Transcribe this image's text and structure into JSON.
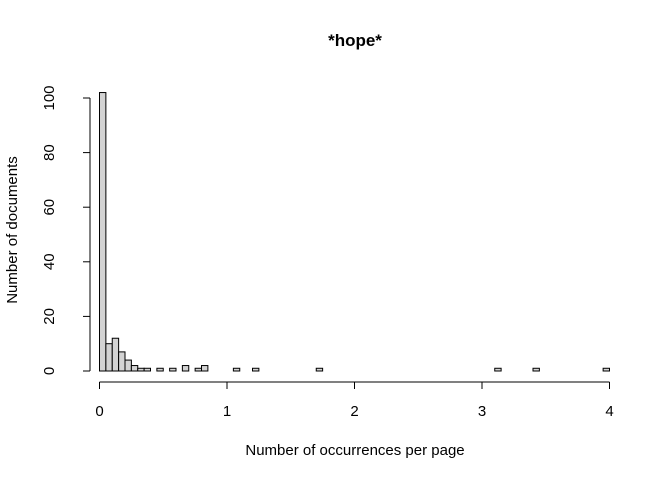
{
  "chart_data": {
    "type": "histogram",
    "title": "*hope*",
    "xlabel": "Number of occurrences per page",
    "ylabel": "Number of documents",
    "x_ticks": [
      0,
      1,
      2,
      3,
      4
    ],
    "y_ticks": [
      0,
      20,
      40,
      60,
      80,
      100
    ],
    "bin_width": 0.05,
    "bins": [
      {
        "x0": 0.0,
        "count": 102
      },
      {
        "x0": 0.05,
        "count": 10
      },
      {
        "x0": 0.1,
        "count": 12
      },
      {
        "x0": 0.15,
        "count": 7
      },
      {
        "x0": 0.2,
        "count": 4
      },
      {
        "x0": 0.25,
        "count": 2
      },
      {
        "x0": 0.3,
        "count": 1
      },
      {
        "x0": 0.35,
        "count": 1
      },
      {
        "x0": 0.45,
        "count": 1
      },
      {
        "x0": 0.55,
        "count": 1
      },
      {
        "x0": 0.65,
        "count": 2
      },
      {
        "x0": 0.75,
        "count": 1
      },
      {
        "x0": 0.8,
        "count": 2
      },
      {
        "x0": 1.05,
        "count": 1
      },
      {
        "x0": 1.2,
        "count": 1
      },
      {
        "x0": 1.7,
        "count": 1
      },
      {
        "x0": 3.1,
        "count": 1
      },
      {
        "x0": 3.4,
        "count": 1
      },
      {
        "x0": 3.95,
        "count": 1
      }
    ],
    "bar_color": "#d3d3d3",
    "grid": false
  }
}
